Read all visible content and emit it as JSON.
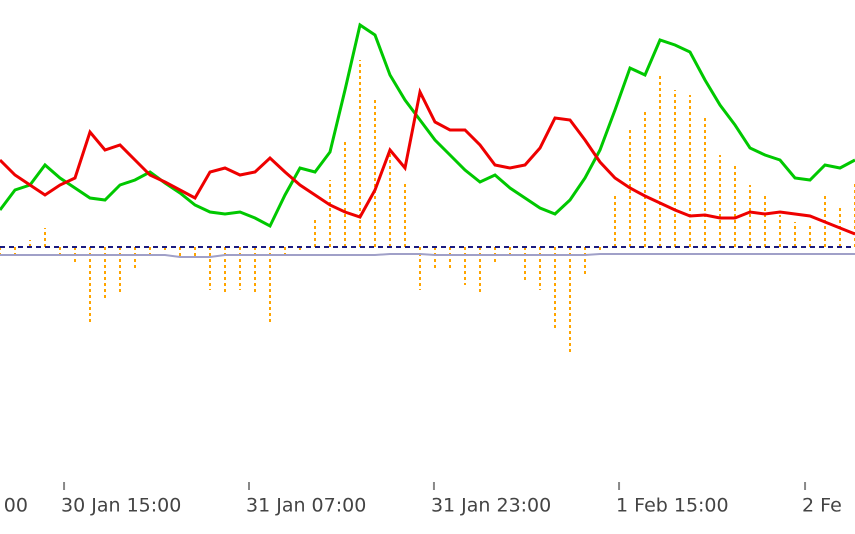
{
  "chart_data": {
    "type": "line",
    "xlim": [
      0,
      57
    ],
    "xticks": [
      {
        "value": -8.07,
        "label": "00"
      },
      {
        "value": 4.27,
        "label": "30 Jan 15:00"
      },
      {
        "value": 16.6,
        "label": "31 Jan 07:00"
      },
      {
        "value": 28.93,
        "label": "31 Jan 23:00"
      },
      {
        "value": 41.27,
        "label": "1 Feb 15:00"
      },
      {
        "value": 53.67,
        "label": "2 Fe"
      }
    ],
    "ylim": [
      -235,
      247
    ],
    "grid": false,
    "hline": 0,
    "hline_color": "#1a1a80",
    "histogram": {
      "color": "#ffa500",
      "values": [
        -8,
        -8,
        7,
        19,
        -8,
        -18,
        -78,
        -53,
        -48,
        -23,
        -11,
        -5,
        -11,
        -11,
        -43,
        -48,
        -43,
        -45,
        -78,
        -11,
        -5,
        29,
        67,
        107,
        187,
        147,
        97,
        65,
        -43,
        -23,
        -23,
        -38,
        -48,
        -15,
        -11,
        -33,
        -43,
        -83,
        -108,
        -28,
        -3,
        52,
        117,
        137,
        172,
        157,
        152,
        132,
        92,
        82,
        62,
        52,
        32,
        25,
        22,
        52,
        42,
        65
      ]
    },
    "series": [
      {
        "color": "#a0a0c8",
        "width": 2,
        "values": [
          -8,
          -8,
          -8,
          -8,
          -8,
          -8,
          -8,
          -8,
          -8,
          -8,
          -8,
          -8,
          -10,
          -10,
          -10,
          -8,
          -8,
          -8,
          -8,
          -8,
          -8,
          -8,
          -8,
          -8,
          -8,
          -8,
          -7,
          -7,
          -7,
          -8,
          -8,
          -8,
          -8,
          -8,
          -8,
          -8,
          -8,
          -8,
          -8,
          -8,
          -7,
          -7,
          -7,
          -7,
          -7,
          -7,
          -7,
          -7,
          -7,
          -7,
          -7,
          -7,
          -7,
          -7,
          -7,
          -7,
          -7,
          -7
        ]
      },
      {
        "color": "#00c800",
        "width": 3,
        "values": [
          37,
          57,
          62,
          82,
          69,
          59,
          49,
          47,
          62,
          67,
          75,
          64,
          54,
          42,
          35,
          33,
          35,
          29,
          21,
          52,
          79,
          75,
          95,
          157,
          222,
          212,
          172,
          147,
          127,
          107,
          92,
          77,
          65,
          72,
          59,
          49,
          39,
          33,
          47,
          69,
          97,
          137,
          179,
          172,
          207,
          202,
          195,
          167,
          142,
          122,
          99,
          92,
          87,
          69,
          67,
          82,
          79,
          87
        ]
      },
      {
        "color": "#ee0000",
        "width": 3,
        "values": [
          87,
          72,
          62,
          52,
          62,
          69,
          115,
          97,
          102,
          87,
          72,
          65,
          57,
          49,
          75,
          79,
          72,
          75,
          89,
          75,
          62,
          52,
          42,
          35,
          30,
          57,
          97,
          79,
          155,
          125,
          117,
          117,
          102,
          82,
          79,
          82,
          99,
          129,
          127,
          107,
          85,
          69,
          59,
          51,
          44,
          37,
          31,
          32,
          29,
          29,
          35,
          33,
          35,
          33,
          31,
          25,
          19,
          13
        ]
      }
    ]
  }
}
